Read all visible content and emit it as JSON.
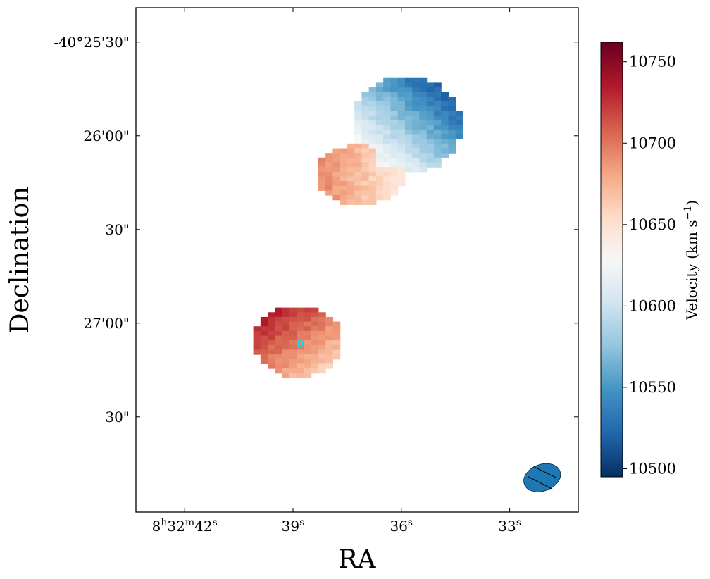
{
  "chart_data": {
    "type": "heatmap",
    "xlabel": "RA",
    "ylabel": "Declination",
    "x_tick_labels": [
      {
        "h": "8",
        "hs": "h",
        "m": "32",
        "ms": "m",
        "s": "42",
        "ss": "s",
        "sec": 42
      },
      {
        "s": "39",
        "ss": "s",
        "sec": 39
      },
      {
        "s": "36",
        "ss": "s",
        "sec": 36
      },
      {
        "s": "33",
        "ss": "s",
        "sec": 33
      }
    ],
    "xlim_ra_sec": [
      43.35,
      31.1
    ],
    "y_tick_labels": [
      {
        "text": "-40°25'30\"",
        "arcsec": -30
      },
      {
        "text": "26'00\"",
        "arcsec": -60
      },
      {
        "text": "30\"",
        "arcsec": -90
      },
      {
        "text": "27'00\"",
        "arcsec": -120
      },
      {
        "text": "30\"",
        "arcsec": -150
      }
    ],
    "ylim_arcsec_from_-40d25m": [
      -180.5,
      -19
    ],
    "colorbar": {
      "label_main": "Velocity (km s",
      "label_sup": "−1",
      "label_close": ")",
      "range": [
        10495,
        10762
      ],
      "ticks": [
        "10500",
        "10550",
        "10600",
        "10650",
        "10700",
        "10750"
      ],
      "cmap": "RdBu_r",
      "color_stops": [
        "#053061",
        "#2166ac",
        "#4393c3",
        "#92c5de",
        "#d1e5f0",
        "#f7f7f7",
        "#fddbc7",
        "#f4a582",
        "#d6604d",
        "#b2182b",
        "#67001f"
      ]
    },
    "regions": [
      {
        "name": "northern velocity field (blue half)",
        "ra_sec": [
          34.35,
          37.25
        ],
        "dec_arcsec": [
          -75.5,
          -41
        ],
        "velocity_min": 10500,
        "velocity_max": 10640,
        "gradient": "blue (~10500) at north-east / top-right, fading to ~10640 toward south"
      },
      {
        "name": "northern velocity field (red half)",
        "ra_sec": [
          35.8,
          38.35
        ],
        "dec_arcsec": [
          -81.5,
          -64
        ],
        "velocity_min": 10640,
        "velocity_max": 10700,
        "gradient": "~10640 toward east fading to ~10700 at west edge"
      },
      {
        "name": "southern velocity field",
        "ra_sec": [
          37.65,
          40.2
        ],
        "dec_arcsec": [
          -137.5,
          -115
        ],
        "velocity_min": 10650,
        "velocity_max": 10762,
        "gradient": "~10760 at north-west corner falling to ~10660 toward south-east"
      }
    ],
    "marker": {
      "type": "ellipse-outline",
      "color": "#00e5ff",
      "ra_sec": 38.8,
      "dec_arcsec": -126.5
    },
    "beam": {
      "type": "filled-ellipse",
      "color": "#1f77b4",
      "ra_sec": 32.1,
      "dec_arcsec": -169.5,
      "pa_deg": -20
    }
  }
}
